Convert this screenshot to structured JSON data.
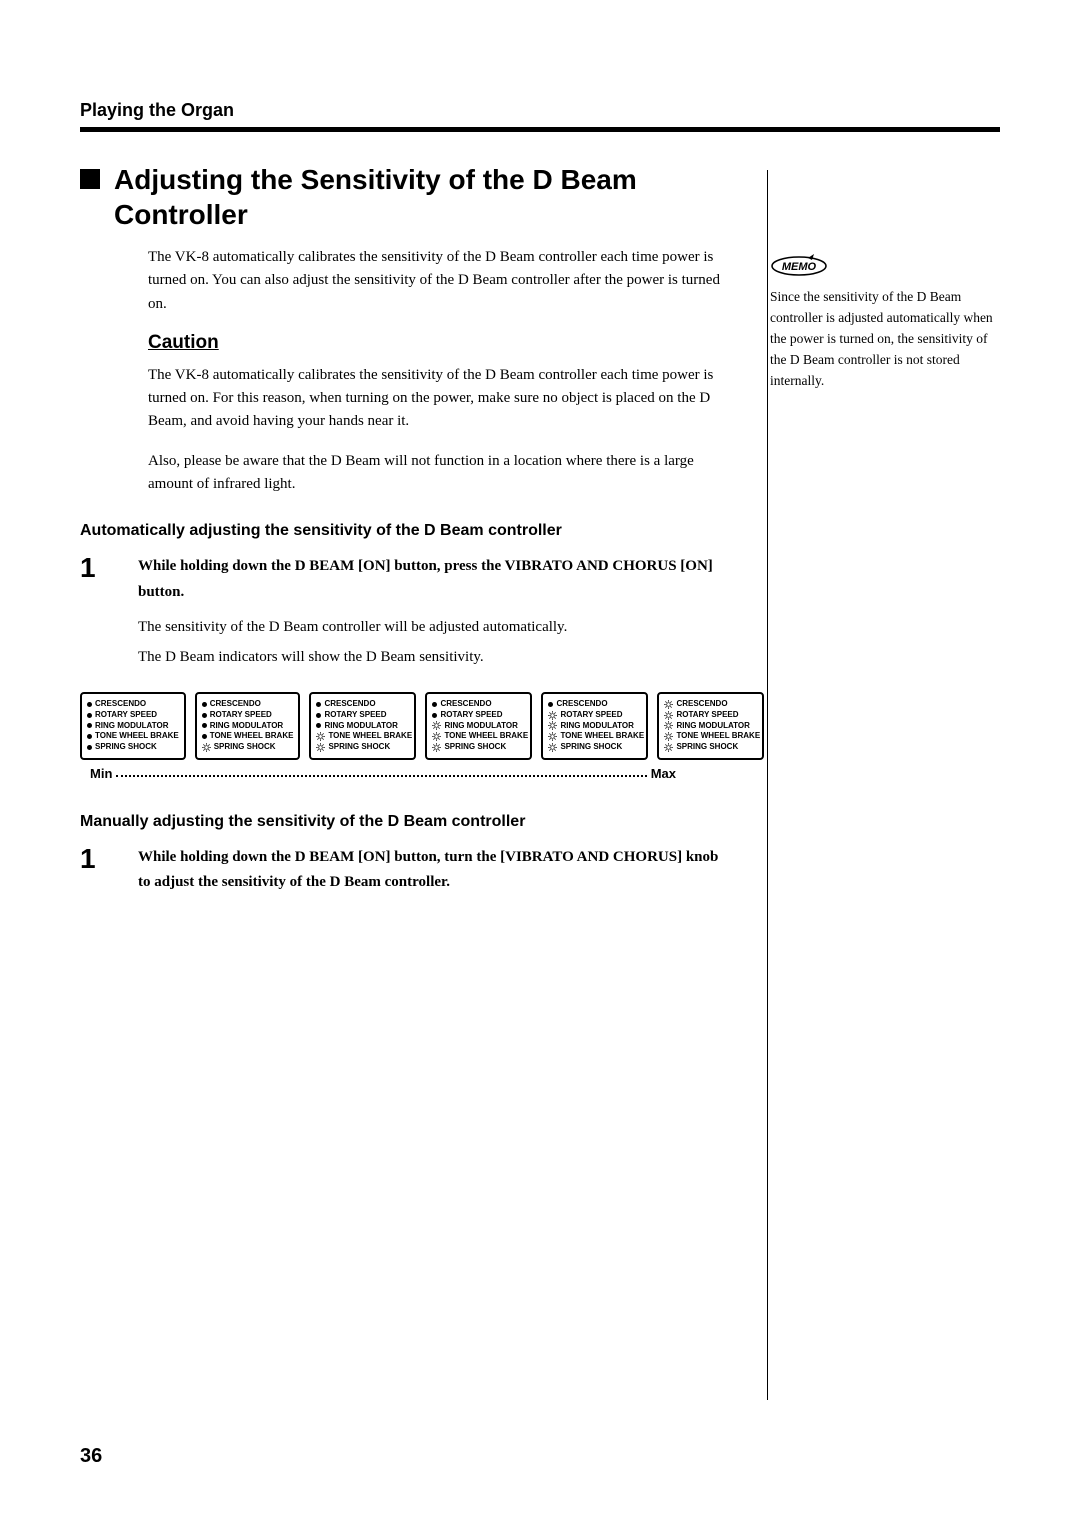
{
  "running_head": "Playing the Organ",
  "heading": "Adjusting the Sensitivity of the D Beam Controller",
  "intro": "The VK-8 automatically calibrates the sensitivity of the D Beam controller each time power is turned on. You can also adjust the sensitivity of the D Beam controller after the power is turned on.",
  "caution_label": "Caution",
  "caution_p1": "The VK-8 automatically calibrates the sensitivity of the D Beam controller each time power is turned on. For this reason, when turning on the power, make sure no object is placed on the D Beam, and avoid having your hands near it.",
  "caution_p2": "Also, please be aware that the D Beam will not function in a location where there is a large amount of infrared light.",
  "auto_heading": "Automatically adjusting the sensitivity of the D Beam controller",
  "auto_step_num": "1",
  "auto_step_bold": "While holding down the D BEAM [ON] button, press the VIBRATO AND CHORUS [ON] button.",
  "auto_after1": "The sensitivity of the D Beam controller will be adjusted automatically.",
  "auto_after2": "The D Beam indicators will show the D Beam sensitivity.",
  "panel_labels": [
    "CRESCENDO",
    "ROTARY SPEED",
    "RING MODULATOR",
    "TONE WHEEL BRAKE",
    "SPRING SHOCK"
  ],
  "panel_pattern": [
    [
      0,
      0,
      0,
      0,
      0
    ],
    [
      0,
      0,
      0,
      0,
      1
    ],
    [
      0,
      0,
      0,
      1,
      1
    ],
    [
      0,
      0,
      1,
      1,
      1
    ],
    [
      0,
      1,
      1,
      1,
      1
    ],
    [
      1,
      1,
      1,
      1,
      1
    ]
  ],
  "min_label": "Min",
  "max_label": "Max",
  "manual_heading": "Manually adjusting the sensitivity of the D Beam controller",
  "manual_step_num": "1",
  "manual_step_bold": "While holding down the D BEAM [ON] button, turn the [VIBRATO AND CHORUS] knob to adjust the sensitivity of the D Beam controller.",
  "memo_text": "Since the sensitivity of the D Beam controller is adjusted automatically when the power is turned on, the sensitivity of the D Beam controller is not stored internally.",
  "page_number": "36",
  "colors": {
    "text": "#000000",
    "bg": "#ffffff"
  }
}
